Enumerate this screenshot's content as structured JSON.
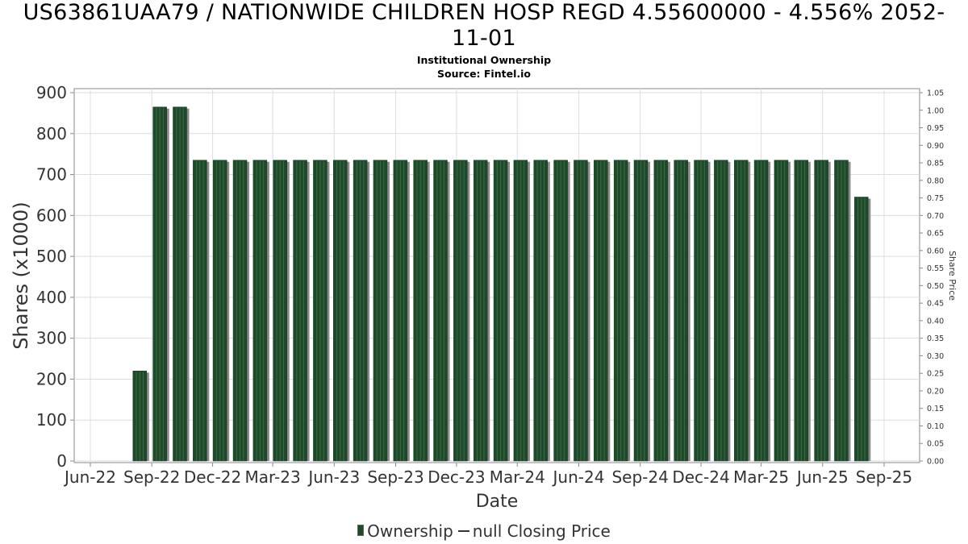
{
  "title_line1": "US63861UAA79 / NATIONWIDE CHILDREN HOSP REGD 4.55600000 - 4.556% 2052-",
  "title_line2": "11-01",
  "subtitle1": "Institutional Ownership",
  "subtitle2": "Source: Fintel.io",
  "legend": {
    "ownership_label": "Ownership",
    "price_label": "null Closing Price"
  },
  "colors": {
    "bar": "#1f4a2a",
    "bar_highlight": "#3a6b45",
    "bar_shadow": "#8a8a8a",
    "grid": "#dddddd",
    "axis": "#888888"
  },
  "chart_data": {
    "type": "bar",
    "xlabel": "Date",
    "ylabel": "Shares (x1000)",
    "y2label": "Share Price",
    "ylim": [
      0,
      900
    ],
    "y2lim": [
      0,
      1.05
    ],
    "yticks": [
      "0",
      "100",
      "200",
      "300",
      "400",
      "500",
      "600",
      "700",
      "800",
      "900"
    ],
    "y2ticks": [
      "0.00",
      "0.05",
      "0.10",
      "0.15",
      "0.20",
      "0.25",
      "0.30",
      "0.35",
      "0.40",
      "0.45",
      "0.50",
      "0.55",
      "0.60",
      "0.65",
      "0.70",
      "0.75",
      "0.80",
      "0.85",
      "0.90",
      "0.95",
      "1.00",
      "1.05"
    ],
    "xticks": [
      "Jun-22",
      "Sep-22",
      "Dec-22",
      "Mar-23",
      "Jun-23",
      "Sep-23",
      "Dec-23",
      "Mar-24",
      "Jun-24",
      "Sep-24",
      "Dec-24",
      "Mar-25",
      "Jun-25",
      "Sep-25"
    ],
    "x_range": [
      "2022-06-01",
      "2025-09-30"
    ],
    "grid": true,
    "legend_position": "bottom",
    "series": [
      {
        "name": "Ownership",
        "dates": [
          "2022-08-14",
          "2022-09-13",
          "2022-10-13",
          "2022-11-12",
          "2022-12-12",
          "2023-01-11",
          "2023-02-10",
          "2023-03-12",
          "2023-04-11",
          "2023-05-11",
          "2023-06-10",
          "2023-07-10",
          "2023-08-09",
          "2023-09-08",
          "2023-10-08",
          "2023-11-07",
          "2023-12-07",
          "2024-01-06",
          "2024-02-05",
          "2024-03-06",
          "2024-04-05",
          "2024-05-05",
          "2024-06-04",
          "2024-07-04",
          "2024-08-03",
          "2024-09-02",
          "2024-10-02",
          "2024-11-01",
          "2024-12-01",
          "2024-12-31",
          "2025-01-30",
          "2025-03-01",
          "2025-03-31",
          "2025-04-30",
          "2025-05-30",
          "2025-06-29",
          "2025-07-29"
        ],
        "values": [
          220,
          865,
          865,
          735,
          735,
          735,
          735,
          735,
          735,
          735,
          735,
          735,
          735,
          735,
          735,
          735,
          735,
          735,
          735,
          735,
          735,
          735,
          735,
          735,
          735,
          735,
          735,
          735,
          735,
          735,
          735,
          735,
          735,
          735,
          735,
          735,
          645
        ]
      }
    ]
  }
}
